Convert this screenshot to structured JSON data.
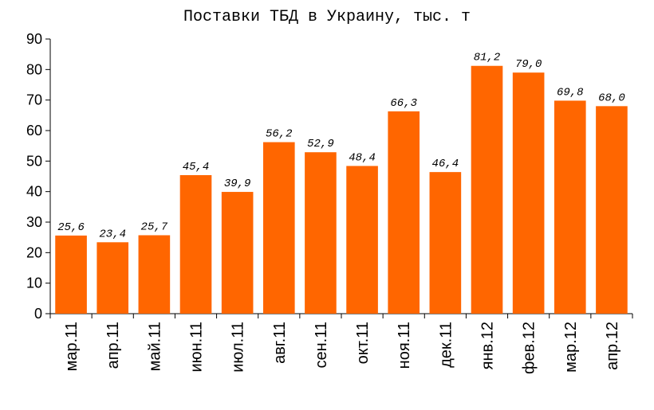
{
  "chart_data": {
    "type": "bar",
    "title": "Поставки ТБД в Украину, тыс. т",
    "xlabel": "",
    "ylabel": "",
    "ylim": [
      0,
      90
    ],
    "yticks": [
      0,
      10,
      20,
      30,
      40,
      50,
      60,
      70,
      80,
      90
    ],
    "grid": false,
    "legend": "none",
    "bar_color": "#ff6600",
    "categories": [
      "мар.11",
      "апр.11",
      "май.11",
      "июн.11",
      "июл.11",
      "авг.11",
      "сен.11",
      "окт.11",
      "ноя.11",
      "дек.11",
      "янв.12",
      "фев.12",
      "мар.12",
      "апр.12"
    ],
    "values": [
      25.6,
      23.4,
      25.7,
      45.4,
      39.9,
      56.2,
      52.9,
      48.4,
      66.3,
      46.4,
      81.2,
      79.0,
      69.8,
      68.0
    ],
    "value_labels": [
      "25,6",
      "23,4",
      "25,7",
      "45,4",
      "39,9",
      "56,2",
      "52,9",
      "48,4",
      "66,3",
      "46,4",
      "81,2",
      "79,0",
      "69,8",
      "68,0"
    ]
  }
}
